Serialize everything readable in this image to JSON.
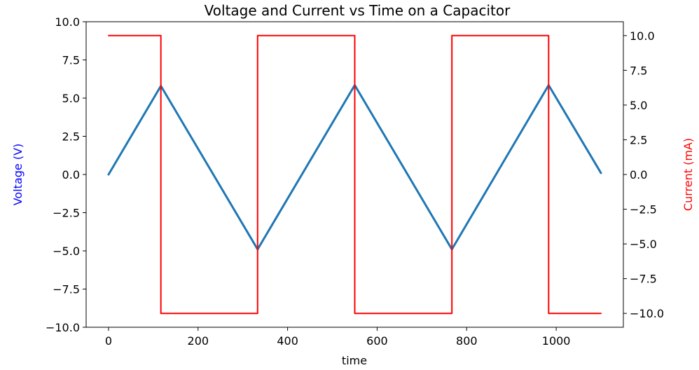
{
  "chart_data": {
    "type": "line",
    "title": "Voltage and Current vs Time on a Capacitor",
    "xlabel": "time",
    "ylabel_left": "Voltage (V)",
    "ylabel_right": "Current (mA)",
    "xlim": [
      -50,
      1150
    ],
    "ylim_left": [
      -10,
      10
    ],
    "ylim_right": [
      -11,
      11
    ],
    "x_ticks": [
      0,
      200,
      400,
      600,
      800,
      1000
    ],
    "x_tick_labels": [
      "0",
      "200",
      "400",
      "600",
      "800",
      "1000"
    ],
    "y_left_ticks": [
      10,
      7.5,
      5,
      2.5,
      0,
      -2.5,
      -5,
      -7.5,
      -10
    ],
    "y_left_tick_labels": [
      "10.0",
      "7.5",
      "5.0",
      "2.5",
      "0.0",
      "−2.5",
      "−5.0",
      "−7.5",
      "−10.0"
    ],
    "y_right_ticks": [
      10,
      7.5,
      5,
      2.5,
      0,
      -2.5,
      -5,
      -7.5,
      -10
    ],
    "y_right_tick_labels": [
      "10.0",
      "7.5",
      "5.0",
      "2.5",
      "0.0",
      "−2.5",
      "−5.0",
      "−7.5",
      "−10.0"
    ],
    "grid": false,
    "series": [
      {
        "axis": "left",
        "color": "#1f77b4",
        "x": [
          0,
          117,
          333,
          550,
          767,
          983,
          1100
        ],
        "y": [
          0,
          5.8,
          -4.9,
          5.85,
          -4.9,
          5.85,
          0.1
        ]
      },
      {
        "axis": "right",
        "color": "#ff0000",
        "step": true,
        "x": [
          0,
          117,
          117,
          333,
          333,
          550,
          550,
          767,
          767,
          983,
          983,
          1100
        ],
        "y": [
          10,
          10,
          -10,
          -10,
          10,
          10,
          -10,
          -10,
          10,
          10,
          -10,
          -10
        ]
      }
    ],
    "colors": {
      "left_label": "#0000ff",
      "right_label": "#ff0000",
      "voltage": "#1f77b4",
      "current": "#ff0000"
    }
  }
}
